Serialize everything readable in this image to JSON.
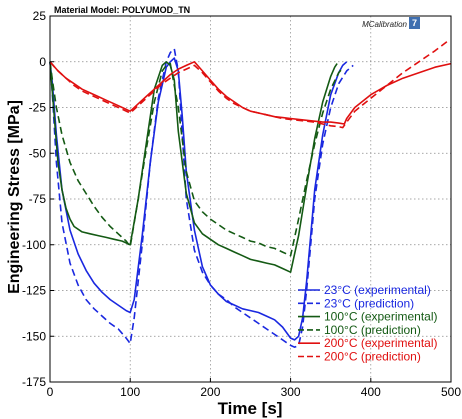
{
  "chart_data": {
    "type": "line",
    "title": "Material Model: POLYUMOD_TN",
    "brand": "MCalibration",
    "xlabel": "Time [s]",
    "ylabel": "Engineering Stress [MPa]",
    "xlim": [
      0,
      500
    ],
    "ylim": [
      -175,
      25
    ],
    "xticks": [
      0,
      100,
      200,
      300,
      400,
      500
    ],
    "yticks": [
      25,
      0,
      -25,
      -50,
      -75,
      -100,
      -125,
      -150,
      -175
    ],
    "grid": true,
    "legend_position": "bottom-right",
    "colors": {
      "blue": "#1a28e0",
      "green": "#145a14",
      "red": "#e01010"
    },
    "series": [
      {
        "name": "23°C (experimental)",
        "color": "#1a28e0",
        "dash": false,
        "x": [
          0,
          3,
          8,
          15,
          25,
          35,
          45,
          55,
          65,
          75,
          85,
          95,
          100,
          105,
          115,
          125,
          135,
          145,
          150,
          155,
          160,
          165,
          170,
          180,
          190,
          200,
          210,
          220,
          230,
          240,
          250,
          260,
          270,
          280,
          290,
          300,
          305,
          310,
          315,
          320,
          325,
          330,
          340,
          350,
          360,
          365,
          370
        ],
        "y": [
          0,
          -12,
          -40,
          -70,
          -92,
          -105,
          -114,
          -121,
          -126,
          -130,
          -133,
          -136,
          -137,
          -130,
          -95,
          -55,
          -22,
          -3,
          0,
          2,
          -5,
          -30,
          -60,
          -92,
          -112,
          -122,
          -127,
          -131,
          -133,
          -135,
          -136,
          -137,
          -139,
          -141,
          -145,
          -151,
          -152,
          -150,
          -140,
          -120,
          -95,
          -70,
          -40,
          -18,
          -6,
          -2,
          0
        ]
      },
      {
        "name": "23°C (prediction)",
        "color": "#1a28e0",
        "dash": true,
        "x": [
          0,
          3,
          8,
          15,
          25,
          35,
          45,
          55,
          65,
          75,
          85,
          95,
          100,
          105,
          115,
          125,
          135,
          145,
          150,
          155,
          160,
          165,
          170,
          180,
          190,
          200,
          210,
          220,
          230,
          240,
          250,
          260,
          270,
          280,
          290,
          300,
          305,
          310,
          315,
          320,
          325,
          330,
          340,
          350,
          360,
          370,
          378
        ],
        "y": [
          0,
          -18,
          -55,
          -88,
          -110,
          -122,
          -130,
          -135,
          -139,
          -143,
          -146,
          -151,
          -154,
          -140,
          -100,
          -55,
          -20,
          0,
          5,
          7,
          -5,
          -40,
          -75,
          -103,
          -115,
          -122,
          -127,
          -130,
          -134,
          -137,
          -140,
          -143,
          -146,
          -149,
          -152,
          -155,
          -156,
          -155,
          -145,
          -125,
          -100,
          -75,
          -45,
          -25,
          -12,
          -5,
          -2
        ]
      },
      {
        "name": "100°C (experimental)",
        "color": "#145a14",
        "dash": false,
        "x": [
          0,
          5,
          10,
          15,
          20,
          25,
          30,
          40,
          50,
          60,
          70,
          80,
          90,
          100,
          110,
          120,
          130,
          140,
          145,
          150,
          155,
          160,
          170,
          180,
          190,
          200,
          210,
          220,
          230,
          240,
          250,
          260,
          270,
          280,
          290,
          300,
          310,
          320,
          330,
          340,
          350,
          355,
          358
        ],
        "y": [
          0,
          -28,
          -55,
          -70,
          -80,
          -86,
          -90,
          -93,
          -94,
          -95,
          -96,
          -97,
          -98,
          -100,
          -75,
          -45,
          -15,
          -2,
          0,
          -2,
          -10,
          -38,
          -72,
          -88,
          -94,
          -97,
          -100,
          -102,
          -104,
          -106,
          -108,
          -109,
          -110,
          -111,
          -113,
          -115,
          -95,
          -68,
          -42,
          -22,
          -8,
          -3,
          -1
        ]
      },
      {
        "name": "100°C (prediction)",
        "color": "#145a14",
        "dash": true,
        "x": [
          0,
          3,
          8,
          15,
          25,
          35,
          45,
          55,
          65,
          75,
          85,
          95,
          100,
          110,
          120,
          130,
          140,
          145,
          150,
          160,
          170,
          180,
          190,
          200,
          210,
          220,
          230,
          240,
          250,
          260,
          270,
          280,
          290,
          300,
          310,
          320,
          330,
          340,
          350,
          360,
          366
        ],
        "y": [
          0,
          -10,
          -25,
          -40,
          -55,
          -65,
          -72,
          -79,
          -85,
          -90,
          -94,
          -98,
          -101,
          -75,
          -48,
          -22,
          -5,
          -2,
          -1,
          -25,
          -60,
          -76,
          -82,
          -86,
          -89,
          -92,
          -94,
          -96,
          -98,
          -99,
          -101,
          -102,
          -104,
          -106,
          -86,
          -65,
          -45,
          -28,
          -15,
          -6,
          -3
        ]
      },
      {
        "name": "200°C (experimental)",
        "color": "#e01010",
        "dash": false,
        "x": [
          0,
          10,
          20,
          30,
          40,
          50,
          60,
          70,
          80,
          90,
          100,
          110,
          120,
          130,
          140,
          150,
          160,
          170,
          180,
          190,
          200,
          210,
          220,
          230,
          240,
          250,
          260,
          270,
          280,
          290,
          300,
          310,
          320,
          330,
          340,
          350,
          360,
          367,
          370,
          380,
          400,
          420,
          440,
          460,
          480,
          500
        ],
        "y": [
          0,
          -5,
          -9,
          -12,
          -15,
          -17,
          -19,
          -21,
          -23,
          -25,
          -27,
          -23,
          -19,
          -15,
          -11,
          -7,
          -4,
          -2,
          0,
          -5,
          -10,
          -15,
          -19,
          -22,
          -25,
          -27,
          -28,
          -29,
          -30,
          -30.5,
          -31,
          -31.5,
          -32,
          -32.5,
          -33,
          -33,
          -33.5,
          -34,
          -31,
          -25,
          -18,
          -13,
          -9,
          -6,
          -3,
          -1
        ]
      },
      {
        "name": "200°C (prediction)",
        "color": "#e01010",
        "dash": true,
        "x": [
          0,
          10,
          20,
          30,
          40,
          50,
          60,
          70,
          80,
          90,
          100,
          110,
          120,
          130,
          140,
          150,
          160,
          170,
          180,
          190,
          200,
          210,
          220,
          230,
          240,
          250,
          260,
          270,
          280,
          290,
          300,
          310,
          320,
          330,
          340,
          350,
          360,
          365,
          370,
          380,
          400,
          420,
          440,
          460,
          480,
          495
        ],
        "y": [
          0,
          -5,
          -9,
          -13,
          -16,
          -18,
          -20,
          -22,
          -24,
          -26,
          -28,
          -24,
          -20,
          -16,
          -12,
          -9,
          -6,
          -4,
          -2,
          -6,
          -11,
          -16,
          -20,
          -23,
          -25,
          -27,
          -28,
          -29,
          -30,
          -31,
          -31.5,
          -32,
          -32.5,
          -33,
          -34,
          -35,
          -35.5,
          -36,
          -33,
          -27,
          -20,
          -13,
          -6,
          0,
          6,
          11
        ]
      }
    ]
  }
}
